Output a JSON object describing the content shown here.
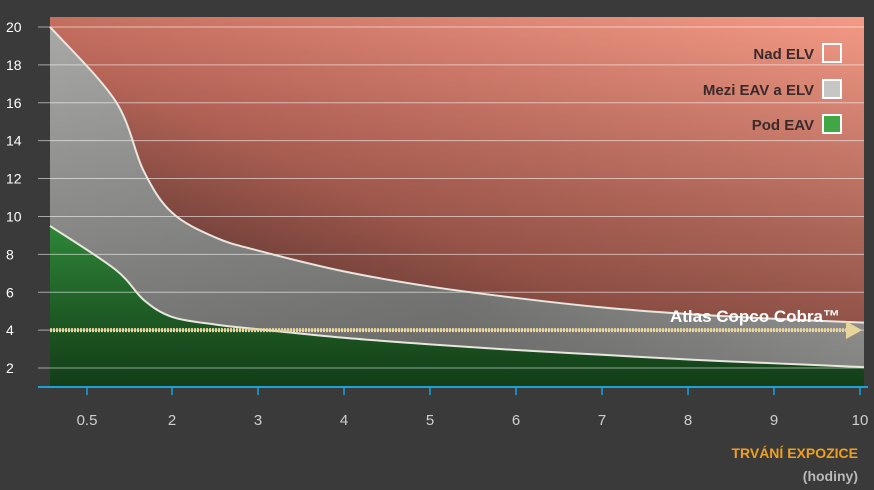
{
  "chart_data": {
    "type": "area",
    "x_axis": {
      "ticks": [
        0.5,
        2,
        3,
        4,
        5,
        6,
        7,
        8,
        9,
        10
      ],
      "tick_labels": [
        "0.5",
        "2",
        "3",
        "4",
        "5",
        "6",
        "7",
        "8",
        "9",
        "10"
      ],
      "label": "TRVÁNÍ EXPOZICE",
      "unit": "(hodiny)"
    },
    "y_axis": {
      "ticks": [
        2,
        4,
        6,
        8,
        10,
        12,
        14,
        16,
        18,
        20
      ],
      "range": [
        0,
        20
      ],
      "grid": true
    },
    "legend": {
      "position": "top-right",
      "items": [
        {
          "label": "Nad ELV",
          "swatch": "#f29a84"
        },
        {
          "label": "Mezi EAV a ELV",
          "swatch": "#c6c6c4"
        },
        {
          "label": "Pod EAV",
          "swatch": "#3fa845"
        }
      ]
    },
    "series": [
      {
        "name": "Mezi EAV a ELV",
        "boundary": "ELV",
        "x": [
          0.5,
          1,
          1.5,
          2,
          2.5,
          3,
          4,
          5,
          6,
          7,
          8,
          9,
          10
        ],
        "y": [
          20,
          16.1,
          12.4,
          10.2,
          8.9,
          8.2,
          7.1,
          6.3,
          5.7,
          5.2,
          4.85,
          4.6,
          4.4
        ]
      },
      {
        "name": "Pod EAV",
        "boundary": "EAV",
        "x": [
          0.5,
          1,
          1.5,
          2,
          2.5,
          3,
          4,
          5,
          6,
          7,
          8,
          9,
          10
        ],
        "y": [
          9.5,
          7.2,
          5.6,
          4.7,
          4.3,
          4.05,
          3.6,
          3.25,
          2.95,
          2.7,
          2.45,
          2.25,
          2.05
        ]
      }
    ],
    "annotation": {
      "label": "Atlas Copco Cobra™",
      "y": 4,
      "x_start": 0.5,
      "x_end": 10
    },
    "colors": {
      "background": "#3a3a3a",
      "above_elv_top": "#f0907c",
      "above_elv_dark": "#5a3a38",
      "between": "#b8b8b6",
      "below_eav": "#2f9a3a",
      "axis": "#1e9fd6",
      "annotation": "#e6d49a",
      "xlabel": "#f0a020"
    }
  }
}
